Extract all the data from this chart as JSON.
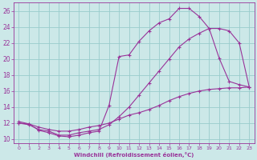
{
  "xlabel": "Windchill (Refroidissement éolien,°C)",
  "bg_color": "#cce8e8",
  "grid_color": "#99cccc",
  "line_color": "#993399",
  "xlim": [
    -0.5,
    23.5
  ],
  "ylim": [
    9.5,
    27.0
  ],
  "yticks": [
    10,
    12,
    14,
    16,
    18,
    20,
    22,
    24,
    26
  ],
  "xticks": [
    0,
    1,
    2,
    3,
    4,
    5,
    6,
    7,
    8,
    9,
    10,
    11,
    12,
    13,
    14,
    15,
    16,
    17,
    18,
    19,
    20,
    21,
    22,
    23
  ],
  "series": [
    {
      "x": [
        0,
        1,
        2,
        3,
        4,
        5,
        6,
        7,
        8,
        9,
        10,
        11,
        12,
        13,
        14,
        15,
        16,
        17,
        18,
        19,
        20,
        21,
        22,
        23
      ],
      "y": [
        12.0,
        11.9,
        11.5,
        11.2,
        11.0,
        11.0,
        11.2,
        11.5,
        11.7,
        12.0,
        12.5,
        13.0,
        13.3,
        13.7,
        14.2,
        14.8,
        15.3,
        15.7,
        16.0,
        16.2,
        16.3,
        16.4,
        16.4,
        16.5
      ]
    },
    {
      "x": [
        0,
        1,
        2,
        3,
        4,
        5,
        6,
        7,
        8,
        9,
        10,
        11,
        12,
        13,
        14,
        15,
        16,
        17,
        18,
        19,
        20,
        21,
        22,
        23
      ],
      "y": [
        12.0,
        11.8,
        11.2,
        11.0,
        10.5,
        10.5,
        10.8,
        11.0,
        11.2,
        11.8,
        12.8,
        14.0,
        15.5,
        17.0,
        18.5,
        20.0,
        21.5,
        22.5,
        23.2,
        23.8,
        23.8,
        23.5,
        22.0,
        16.5
      ]
    },
    {
      "x": [
        0,
        1,
        2,
        3,
        4,
        5,
        6,
        7,
        8,
        9,
        10,
        11,
        12,
        13,
        14,
        15,
        16,
        17,
        18,
        19,
        20,
        21,
        22,
        23
      ],
      "y": [
        12.2,
        11.9,
        11.1,
        10.8,
        10.4,
        10.3,
        10.5,
        10.8,
        11.0,
        14.2,
        20.3,
        20.5,
        22.2,
        23.5,
        24.5,
        25.0,
        26.3,
        26.3,
        25.3,
        23.8,
        20.1,
        17.2,
        16.8,
        16.5
      ]
    }
  ]
}
